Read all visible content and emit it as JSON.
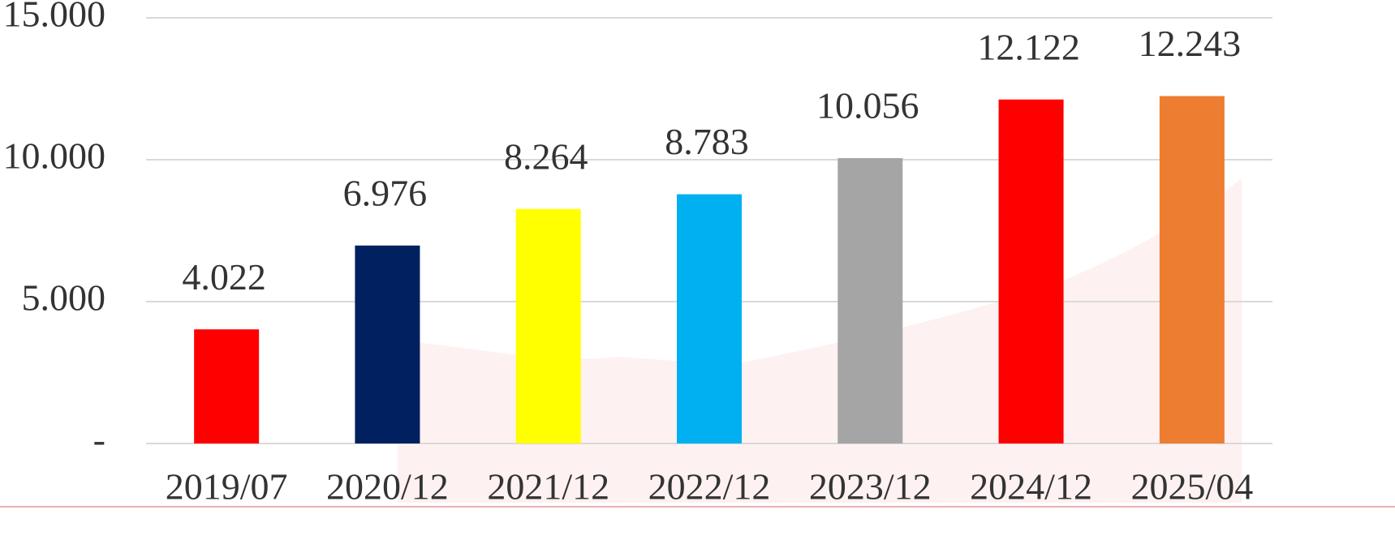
{
  "chart_data": {
    "type": "bar",
    "categories": [
      "2019/07",
      "2020/12",
      "2021/12",
      "2022/12",
      "2023/12",
      "2024/12",
      "2025/04"
    ],
    "values": [
      4022,
      6976,
      8264,
      8783,
      10056,
      12122,
      12243
    ],
    "value_labels": [
      "4.022",
      "6.976",
      "8.264",
      "8.783",
      "10.056",
      "12.122",
      "12.243"
    ],
    "colors": [
      "#ff0000",
      "#002060",
      "#ffff00",
      "#00b0f0",
      "#a5a5a5",
      "#ff0000",
      "#ed7d31"
    ],
    "ylim": [
      0,
      15000
    ],
    "yticks": [
      {
        "value": 0,
        "label": "-"
      },
      {
        "value": 5000,
        "label": "5.000"
      },
      {
        "value": 10000,
        "label": "10.000"
      },
      {
        "value": 15000,
        "label": "15.000"
      }
    ],
    "grid": true
  }
}
